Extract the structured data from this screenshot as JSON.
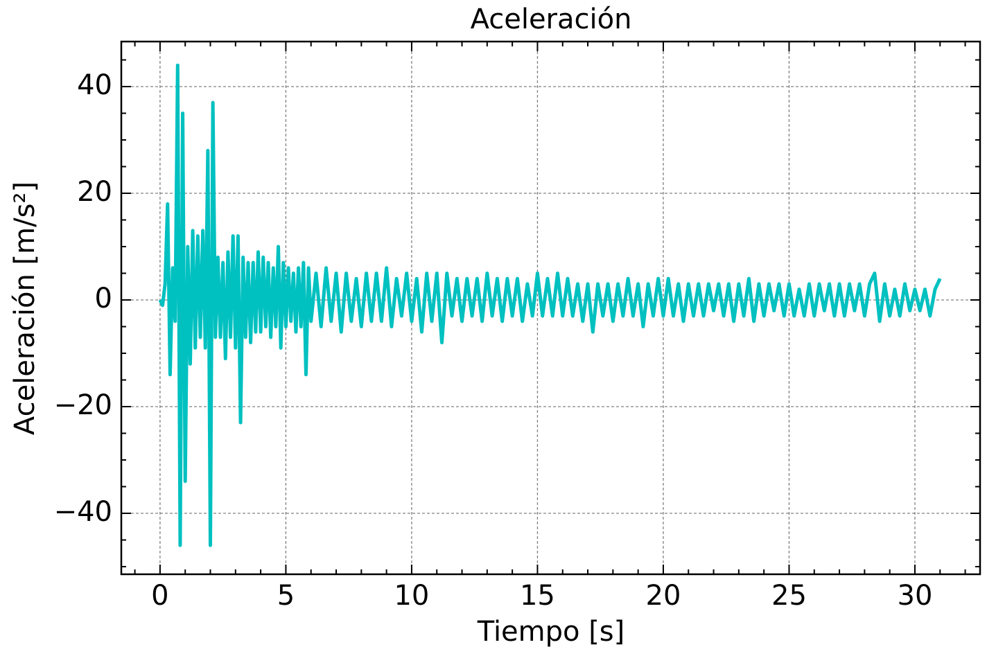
{
  "chart_data": {
    "type": "line",
    "title": "Aceleración",
    "x_label": "Tiempo [s]",
    "y_label": "Aceleración [m/s²]",
    "color": "#00c0c0",
    "grid": true,
    "xlim": [
      -1.54,
      32.59
    ],
    "ylim": [
      -51.43,
      48.44
    ],
    "xticks": [
      0,
      5,
      10,
      15,
      20,
      25,
      30
    ],
    "yticks": [
      {
        "value": -40,
        "label": "−40"
      },
      {
        "value": -20,
        "label": "−20"
      },
      0,
      20,
      40
    ],
    "xminorticks": [
      -1,
      1,
      2,
      3,
      4,
      6,
      7,
      8,
      9,
      11,
      12,
      13,
      14,
      16,
      17,
      18,
      19,
      21,
      22,
      23,
      24,
      26,
      27,
      28,
      29,
      31,
      32
    ],
    "yminorticks": [
      -50,
      -45,
      -35,
      -30,
      -25,
      -15,
      -10,
      -5,
      5,
      10,
      15,
      25,
      30,
      35,
      45
    ],
    "x": [
      0.0,
      0.1,
      0.2,
      0.3,
      0.4,
      0.5,
      0.6,
      0.7,
      0.8,
      0.9,
      1.0,
      1.1,
      1.2,
      1.3,
      1.4,
      1.5,
      1.6,
      1.7,
      1.8,
      1.9,
      2.0,
      2.1,
      2.2,
      2.3,
      2.4,
      2.5,
      2.6,
      2.7,
      2.8,
      2.9,
      3.0,
      3.1,
      3.2,
      3.3,
      3.4,
      3.5,
      3.6,
      3.7,
      3.8,
      3.9,
      4.0,
      4.1,
      4.2,
      4.3,
      4.4,
      4.5,
      4.6,
      4.7,
      4.8,
      4.9,
      5.0,
      5.1,
      5.2,
      5.3,
      5.4,
      5.5,
      5.6,
      5.7,
      5.8,
      5.9,
      6.0,
      6.2,
      6.4,
      6.6,
      6.8,
      7.0,
      7.2,
      7.4,
      7.6,
      7.8,
      8.0,
      8.2,
      8.4,
      8.6,
      8.8,
      9.0,
      9.2,
      9.4,
      9.6,
      9.8,
      10.0,
      10.2,
      10.4,
      10.6,
      10.8,
      11.0,
      11.2,
      11.4,
      11.6,
      11.8,
      12.0,
      12.2,
      12.4,
      12.6,
      12.8,
      13.0,
      13.2,
      13.4,
      13.6,
      13.8,
      14.0,
      14.2,
      14.4,
      14.6,
      14.8,
      15.0,
      15.2,
      15.4,
      15.6,
      15.8,
      16.0,
      16.2,
      16.4,
      16.6,
      16.8,
      17.0,
      17.2,
      17.4,
      17.6,
      17.8,
      18.0,
      18.2,
      18.4,
      18.6,
      18.8,
      19.0,
      19.2,
      19.4,
      19.6,
      19.8,
      20.0,
      20.2,
      20.4,
      20.6,
      20.8,
      21.0,
      21.2,
      21.4,
      21.6,
      21.8,
      22.0,
      22.2,
      22.4,
      22.6,
      22.8,
      23.0,
      23.2,
      23.4,
      23.6,
      23.8,
      24.0,
      24.2,
      24.4,
      24.6,
      24.8,
      25.0,
      25.2,
      25.4,
      25.6,
      25.8,
      26.0,
      26.2,
      26.4,
      26.6,
      26.8,
      27.0,
      27.2,
      27.4,
      27.6,
      27.8,
      28.0,
      28.2,
      28.4,
      28.6,
      28.8,
      29.0,
      29.2,
      29.4,
      29.6,
      29.8,
      30.0,
      30.2,
      30.4,
      30.6,
      30.8,
      31.0
    ],
    "values": [
      0,
      -1,
      3,
      18,
      -14,
      6,
      -4,
      44,
      -46,
      35,
      -34,
      10,
      -12,
      13,
      -9,
      12,
      -7,
      13,
      -9,
      28,
      -46,
      37,
      -7,
      8,
      -7,
      7,
      -11,
      9,
      -7,
      12,
      -9,
      12,
      -23,
      8,
      -7,
      7,
      -8,
      7,
      -6,
      9,
      -6,
      8,
      -5,
      7,
      -7,
      6,
      -5,
      10,
      -9,
      7,
      -5,
      6,
      -4,
      5,
      -6,
      6,
      -5,
      7,
      -14,
      6,
      -4,
      5,
      -5,
      6,
      -4,
      5,
      -6,
      5,
      -4,
      4,
      -5,
      5,
      -4,
      5,
      -4,
      6,
      -5,
      4,
      -3,
      5,
      -4,
      4,
      -6,
      5,
      -4,
      5,
      -8,
      5,
      -3,
      4,
      -4,
      4,
      -3,
      4,
      -4,
      5,
      -3,
      4,
      -4,
      4,
      -3,
      4,
      -4,
      3,
      -3,
      5,
      -3,
      4,
      -3,
      5,
      -3,
      4,
      -3,
      3,
      -4,
      3,
      -6,
      3,
      -3,
      3,
      -4,
      3,
      -3,
      4,
      -3,
      3,
      -5,
      3,
      -3,
      4,
      -3,
      4,
      -3,
      3,
      -4,
      3,
      -3,
      3,
      -3,
      3,
      -2,
      3,
      -3,
      3,
      -4,
      3,
      -3,
      4,
      -4,
      3,
      -3,
      3,
      -2,
      3,
      -3,
      3,
      -3,
      2,
      -3,
      3,
      -3,
      3,
      -2,
      3,
      -3,
      3,
      -3,
      3,
      -2,
      3,
      -3,
      3,
      5,
      -4,
      3,
      -3,
      2,
      -3,
      3,
      -2,
      2,
      -2,
      2,
      -3,
      2,
      4
    ]
  }
}
